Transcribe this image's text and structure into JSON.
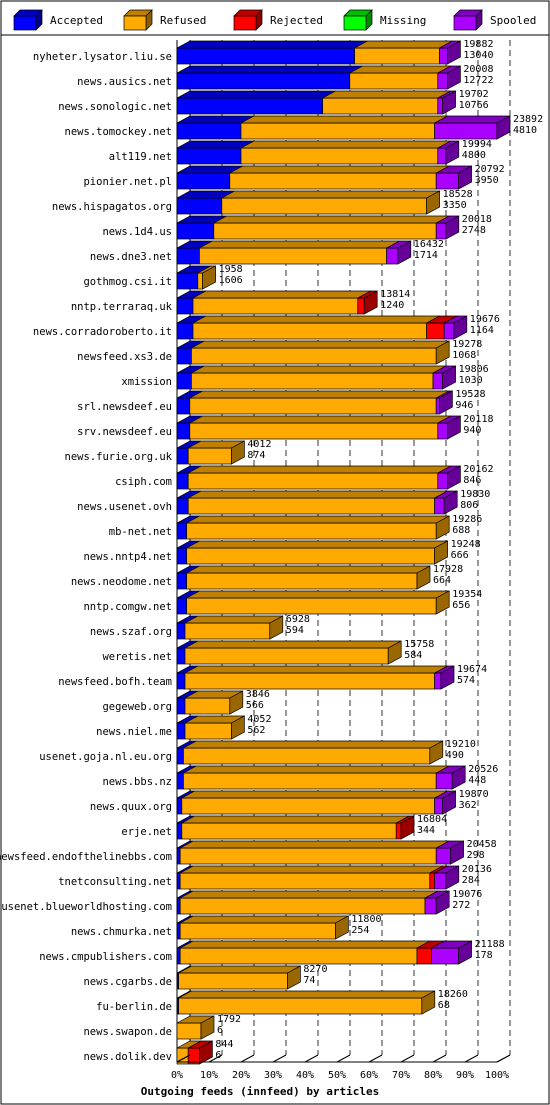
{
  "chart_data": {
    "type": "bar",
    "stacked": true,
    "orientation": "horizontal",
    "title": "",
    "xlabel": "Outgoing feeds (innfeed) by articles",
    "ylabel": "",
    "xlim": [
      0,
      100
    ],
    "x_ticks": [
      "0%",
      "10%",
      "20%",
      "30%",
      "40%",
      "50%",
      "60%",
      "70%",
      "80%",
      "90%",
      "100%"
    ],
    "legend": {
      "placement": "top",
      "items": [
        {
          "name": "Accepted",
          "color": "#0000ff"
        },
        {
          "name": "Refused",
          "color": "#ffaa00"
        },
        {
          "name": "Rejected",
          "color": "#ff0000"
        },
        {
          "name": "Missing",
          "color": "#00ff00"
        },
        {
          "name": "Spooled",
          "color": "#aa00ff"
        }
      ]
    },
    "value_unit": "percent of max offered",
    "series_order": [
      "Accepted",
      "Refused",
      "Rejected",
      "Missing",
      "Spooled"
    ],
    "rows": [
      {
        "label": "nyheter.lysator.liu.se",
        "total": "19882",
        "accepted": "13040",
        "values": [
          55.5,
          26.5,
          0,
          0,
          2.5
        ]
      },
      {
        "label": "news.ausics.net",
        "total": "20008",
        "accepted": "12722",
        "values": [
          54.0,
          27.5,
          0,
          0,
          3.0
        ]
      },
      {
        "label": "news.sonologic.net",
        "total": "19702",
        "accepted": "10766",
        "values": [
          45.5,
          36.0,
          0,
          0,
          1.5
        ]
      },
      {
        "label": "news.tomockey.net",
        "total": "23892",
        "accepted": "4810",
        "values": [
          20.0,
          60.5,
          0,
          0,
          19.5
        ]
      },
      {
        "label": "alt119.net",
        "total": "19994",
        "accepted": "4800",
        "values": [
          20.0,
          61.5,
          0,
          0,
          2.5
        ]
      },
      {
        "label": "pionier.net.pl",
        "total": "20792",
        "accepted": "3950",
        "values": [
          16.5,
          64.5,
          0,
          0,
          7.0
        ]
      },
      {
        "label": "news.hispagatos.org",
        "total": "18528",
        "accepted": "3350",
        "values": [
          14.0,
          64.0,
          0,
          0,
          0
        ]
      },
      {
        "label": "news.1d4.us",
        "total": "20018",
        "accepted": "2748",
        "values": [
          11.5,
          69.5,
          0,
          0,
          3.0
        ]
      },
      {
        "label": "news.dne3.net",
        "total": "16432",
        "accepted": "1714",
        "values": [
          7.0,
          58.5,
          0,
          0,
          3.5
        ]
      },
      {
        "label": "gothmog.csi.it",
        "total": "1958",
        "accepted": "1606",
        "values": [
          6.5,
          1.5,
          0,
          0,
          0
        ]
      },
      {
        "label": "nntp.terraraq.uk",
        "total": "13814",
        "accepted": "1240",
        "values": [
          5.0,
          51.5,
          2.0,
          0,
          0
        ]
      },
      {
        "label": "news.corradoroberto.it",
        "total": "19676",
        "accepted": "1164",
        "values": [
          5.0,
          73.0,
          5.5,
          0,
          3.0
        ]
      },
      {
        "label": "newsfeed.xs3.de",
        "total": "19278",
        "accepted": "1068",
        "values": [
          4.5,
          76.5,
          0,
          0,
          0
        ]
      },
      {
        "label": "xmission",
        "total": "19806",
        "accepted": "1030",
        "values": [
          4.5,
          75.5,
          0,
          0,
          3.0
        ]
      },
      {
        "label": "srl.newsdeef.eu",
        "total": "19528",
        "accepted": "946",
        "values": [
          4.0,
          77.0,
          0,
          0,
          1.0
        ]
      },
      {
        "label": "srv.newsdeef.eu",
        "total": "20118",
        "accepted": "940",
        "values": [
          4.0,
          77.5,
          0,
          0,
          3.0
        ]
      },
      {
        "label": "news.furie.org.uk",
        "total": "4012",
        "accepted": "874",
        "values": [
          3.5,
          13.5,
          0,
          0,
          0
        ]
      },
      {
        "label": "csiph.com",
        "total": "20162",
        "accepted": "846",
        "values": [
          3.5,
          78.0,
          0,
          0,
          3.0
        ]
      },
      {
        "label": "news.usenet.ovh",
        "total": "19830",
        "accepted": "806",
        "values": [
          3.5,
          77.0,
          0,
          0,
          3.0
        ]
      },
      {
        "label": "mb-net.net",
        "total": "19286",
        "accepted": "688",
        "values": [
          3.0,
          78.0,
          0,
          0,
          0
        ]
      },
      {
        "label": "news.nntp4.net",
        "total": "19248",
        "accepted": "666",
        "values": [
          3.0,
          77.5,
          0,
          0,
          0
        ]
      },
      {
        "label": "news.neodome.net",
        "total": "17928",
        "accepted": "664",
        "values": [
          3.0,
          72.0,
          0,
          0,
          0
        ]
      },
      {
        "label": "nntp.comgw.net",
        "total": "19354",
        "accepted": "656",
        "values": [
          3.0,
          78.0,
          0,
          0,
          0
        ]
      },
      {
        "label": "news.szaf.org",
        "total": "6928",
        "accepted": "594",
        "values": [
          2.5,
          26.5,
          0,
          0,
          0
        ]
      },
      {
        "label": "weretis.net",
        "total": "15758",
        "accepted": "584",
        "values": [
          2.5,
          63.5,
          0,
          0,
          0
        ]
      },
      {
        "label": "newsfeed.bofh.team",
        "total": "19674",
        "accepted": "574",
        "values": [
          2.5,
          78.0,
          0,
          0,
          2.0
        ]
      },
      {
        "label": "gegeweb.org",
        "total": "3846",
        "accepted": "566",
        "values": [
          2.5,
          14.0,
          0,
          0,
          0
        ]
      },
      {
        "label": "news.niel.me",
        "total": "4052",
        "accepted": "562",
        "values": [
          2.5,
          14.5,
          0,
          0,
          0
        ]
      },
      {
        "label": "usenet.goja.nl.eu.org",
        "total": "19210",
        "accepted": "490",
        "values": [
          2.0,
          77.0,
          0,
          0,
          0
        ]
      },
      {
        "label": "news.bbs.nz",
        "total": "20526",
        "accepted": "448",
        "values": [
          2.0,
          79.0,
          0,
          0,
          5.0
        ]
      },
      {
        "label": "news.quux.org",
        "total": "19870",
        "accepted": "362",
        "values": [
          1.5,
          79.0,
          0,
          0,
          2.5
        ]
      },
      {
        "label": "erje.net",
        "total": "16804",
        "accepted": "344",
        "values": [
          1.5,
          67.0,
          1.5,
          0,
          0
        ]
      },
      {
        "label": "newsfeed.endofthelinebbs.com",
        "total": "20458",
        "accepted": "298",
        "values": [
          1.0,
          80.0,
          0,
          0,
          4.5
        ]
      },
      {
        "label": "tnetconsulting.net",
        "total": "20136",
        "accepted": "284",
        "values": [
          1.0,
          78.0,
          1.5,
          0,
          3.5
        ]
      },
      {
        "label": "usenet.blueworldhosting.com",
        "total": "19076",
        "accepted": "272",
        "values": [
          1.0,
          76.5,
          0,
          0,
          3.5
        ]
      },
      {
        "label": "news.chmurka.net",
        "total": "11800",
        "accepted": "254",
        "values": [
          1.0,
          48.5,
          0,
          0,
          0
        ]
      },
      {
        "label": "news.cmpublishers.com",
        "total": "21188",
        "accepted": "178",
        "values": [
          1.0,
          74.0,
          4.5,
          0,
          8.5
        ]
      },
      {
        "label": "news.cgarbs.de",
        "total": "8270",
        "accepted": "74",
        "values": [
          0.5,
          34.0,
          0,
          0,
          0
        ]
      },
      {
        "label": "fu-berlin.de",
        "total": "18260",
        "accepted": "68",
        "values": [
          0.5,
          76.0,
          0,
          0,
          0
        ]
      },
      {
        "label": "news.swapon.de",
        "total": "1792",
        "accepted": "6",
        "values": [
          0,
          7.5,
          0,
          0,
          0
        ]
      },
      {
        "label": "news.dolik.dev",
        "total": "844",
        "accepted": "6",
        "values": [
          0,
          3.5,
          3.5,
          0,
          0
        ]
      }
    ]
  }
}
